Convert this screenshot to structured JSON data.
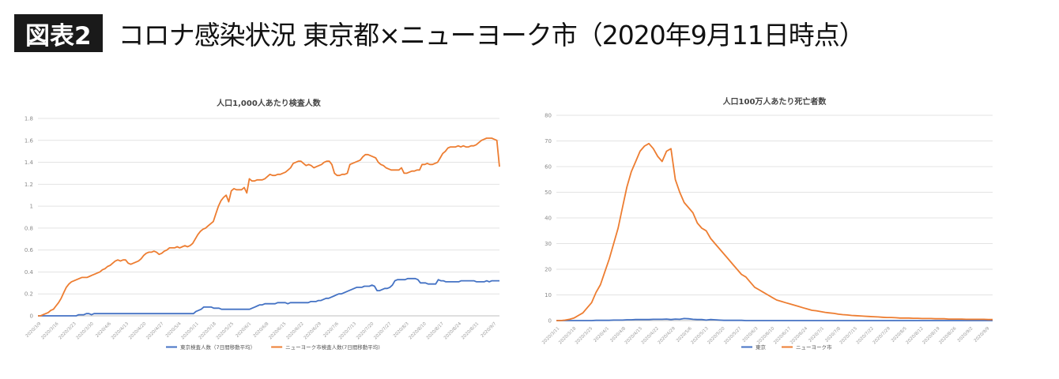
{
  "header": {
    "badge": "図表2",
    "title": "コロナ感染状況 東京都×ニューヨーク市（2020年9月11日時点）"
  },
  "colors": {
    "tokyo": "#4472C4",
    "nyc": "#ED7D31",
    "grid": "#e3e3e3",
    "axis_text": "#8a8a8a"
  },
  "chart_data": [
    {
      "type": "line",
      "title": "人口1,000人あたり検査人数",
      "xlabel": "",
      "ylabel": "",
      "ylim": [
        0,
        1.8
      ],
      "yticks": [
        "0",
        "0.2",
        "0.4",
        "0.6",
        "0.8",
        "1",
        "1.2",
        "1.4",
        "1.6",
        "1.8"
      ],
      "x_ticklabels": [
        "2020/3/9",
        "2020/3/16",
        "2020/3/23",
        "2020/3/30",
        "2020/4/6",
        "2020/4/13",
        "2020/4/20",
        "2020/4/27",
        "2020/5/4",
        "2020/5/11",
        "2020/5/18",
        "2020/5/25",
        "2020/6/1",
        "2020/6/8",
        "2020/6/15",
        "2020/6/22",
        "2020/6/29",
        "2020/7/6",
        "2020/7/13",
        "2020/7/20",
        "2020/7/27",
        "2020/8/3",
        "2020/8/10",
        "2020/8/17",
        "2020/8/24",
        "2020/8/31",
        "2020/9/7"
      ],
      "legend_position": "bottom",
      "grid": true,
      "series": [
        {
          "name": "東京検査人数（7日間移動平均）",
          "color": "#4472C4",
          "values": [
            0,
            0,
            0,
            0,
            0,
            0,
            0,
            0,
            0,
            0,
            0,
            0,
            0,
            0,
            0,
            0,
            0.01,
            0.01,
            0.01,
            0.02,
            0.02,
            0.01,
            0.02,
            0.02,
            0.02,
            0.02,
            0.02,
            0.02,
            0.02,
            0.02,
            0.02,
            0.02,
            0.02,
            0.02,
            0.02,
            0.02,
            0.02,
            0.02,
            0.02,
            0.02,
            0.02,
            0.02,
            0.02,
            0.02,
            0.02,
            0.02,
            0.02,
            0.02,
            0.02,
            0.02,
            0.02,
            0.02,
            0.02,
            0.02,
            0.02,
            0.02,
            0.02,
            0.02,
            0.02,
            0.02,
            0.02,
            0.02,
            0.04,
            0.05,
            0.06,
            0.08,
            0.08,
            0.08,
            0.08,
            0.07,
            0.07,
            0.07,
            0.06,
            0.06,
            0.06,
            0.06,
            0.06,
            0.06,
            0.06,
            0.06,
            0.06,
            0.06,
            0.06,
            0.06,
            0.07,
            0.08,
            0.09,
            0.1,
            0.1,
            0.11,
            0.11,
            0.11,
            0.11,
            0.11,
            0.12,
            0.12,
            0.12,
            0.12,
            0.11,
            0.12,
            0.12,
            0.12,
            0.12,
            0.12,
            0.12,
            0.12,
            0.12,
            0.13,
            0.13,
            0.13,
            0.14,
            0.14,
            0.15,
            0.16,
            0.16,
            0.17,
            0.18,
            0.19,
            0.2,
            0.2,
            0.21,
            0.22,
            0.23,
            0.24,
            0.25,
            0.26,
            0.26,
            0.26,
            0.27,
            0.27,
            0.27,
            0.28,
            0.27,
            0.23,
            0.23,
            0.24,
            0.25,
            0.25,
            0.26,
            0.28,
            0.32,
            0.33,
            0.33,
            0.33,
            0.33,
            0.34,
            0.34,
            0.34,
            0.34,
            0.33,
            0.3,
            0.3,
            0.3,
            0.29,
            0.29,
            0.29,
            0.29,
            0.33,
            0.32,
            0.32,
            0.31,
            0.31,
            0.31,
            0.31,
            0.31,
            0.31,
            0.32,
            0.32,
            0.32,
            0.32,
            0.32,
            0.32,
            0.31,
            0.31,
            0.31,
            0.31,
            0.32,
            0.31,
            0.32,
            0.32,
            0.32,
            0.32
          ]
        },
        {
          "name": "ニューヨーク市検査人数(7日間移動平均)",
          "color": "#ED7D31",
          "values": [
            0,
            0,
            0.01,
            0.02,
            0.03,
            0.05,
            0.06,
            0.09,
            0.12,
            0.16,
            0.21,
            0.26,
            0.29,
            0.31,
            0.32,
            0.33,
            0.34,
            0.35,
            0.35,
            0.35,
            0.36,
            0.37,
            0.38,
            0.39,
            0.4,
            0.42,
            0.43,
            0.45,
            0.46,
            0.48,
            0.5,
            0.51,
            0.5,
            0.51,
            0.51,
            0.48,
            0.47,
            0.48,
            0.49,
            0.5,
            0.52,
            0.55,
            0.57,
            0.58,
            0.58,
            0.59,
            0.58,
            0.56,
            0.57,
            0.59,
            0.6,
            0.62,
            0.62,
            0.62,
            0.63,
            0.62,
            0.63,
            0.64,
            0.63,
            0.64,
            0.66,
            0.7,
            0.74,
            0.77,
            0.79,
            0.8,
            0.82,
            0.84,
            0.86,
            0.93,
            1.0,
            1.05,
            1.08,
            1.1,
            1.04,
            1.14,
            1.16,
            1.15,
            1.15,
            1.15,
            1.17,
            1.12,
            1.25,
            1.23,
            1.23,
            1.24,
            1.24,
            1.24,
            1.25,
            1.27,
            1.29,
            1.28,
            1.28,
            1.29,
            1.29,
            1.3,
            1.31,
            1.33,
            1.35,
            1.39,
            1.4,
            1.41,
            1.41,
            1.39,
            1.37,
            1.38,
            1.37,
            1.35,
            1.36,
            1.37,
            1.38,
            1.4,
            1.41,
            1.41,
            1.38,
            1.3,
            1.28,
            1.28,
            1.29,
            1.29,
            1.3,
            1.38,
            1.39,
            1.4,
            1.41,
            1.42,
            1.45,
            1.47,
            1.47,
            1.46,
            1.45,
            1.44,
            1.4,
            1.38,
            1.37,
            1.35,
            1.34,
            1.33,
            1.33,
            1.33,
            1.33,
            1.35,
            1.3,
            1.3,
            1.31,
            1.32,
            1.32,
            1.33,
            1.33,
            1.38,
            1.38,
            1.39,
            1.38,
            1.38,
            1.39,
            1.4,
            1.44,
            1.48,
            1.5,
            1.53,
            1.54,
            1.54,
            1.54,
            1.55,
            1.54,
            1.55,
            1.54,
            1.54,
            1.55,
            1.55,
            1.56,
            1.58,
            1.6,
            1.61,
            1.62,
            1.62,
            1.62,
            1.61,
            1.6,
            1.36
          ]
        }
      ]
    },
    {
      "type": "line",
      "title": "人口100万人あたり死亡者数",
      "xlabel": "",
      "ylabel": "",
      "ylim": [
        0,
        80
      ],
      "yticks": [
        "0",
        "10",
        "20",
        "30",
        "40",
        "50",
        "60",
        "70",
        "80"
      ],
      "x_ticklabels": [
        "2020/3/11",
        "2020/3/18",
        "2020/3/25",
        "2020/4/1",
        "2020/4/8",
        "2020/4/15",
        "2020/4/22",
        "2020/4/29",
        "2020/5/6",
        "2020/5/13",
        "2020/5/20",
        "2020/5/27",
        "2020/6/3",
        "2020/6/10",
        "2020/6/17",
        "2020/6/24",
        "2020/7/1",
        "2020/7/8",
        "2020/7/15",
        "2020/7/22",
        "2020/7/29",
        "2020/8/5",
        "2020/8/12",
        "2020/8/19",
        "2020/8/26",
        "2020/9/2",
        "2020/9/9"
      ],
      "legend_position": "bottom",
      "grid": true,
      "series": [
        {
          "name": "東京",
          "color": "#4472C4",
          "values": [
            0,
            0,
            0,
            0,
            0,
            0,
            0,
            0,
            0,
            0.1,
            0.1,
            0.1,
            0.1,
            0.2,
            0.2,
            0.2,
            0.3,
            0.3,
            0.4,
            0.4,
            0.4,
            0.4,
            0.5,
            0.5,
            0.5,
            0.6,
            0.4,
            0.6,
            0.5,
            0.8,
            0.7,
            0.5,
            0.4,
            0.4,
            0.2,
            0.4,
            0.3,
            0.2,
            0.1,
            0.1,
            0.1,
            0.1,
            0.1,
            0,
            0,
            0,
            0,
            0,
            0,
            0,
            0,
            0,
            0,
            0,
            0,
            0,
            0,
            0,
            0,
            0,
            0,
            0,
            0,
            0,
            0,
            0,
            0,
            0,
            0,
            0,
            0,
            0,
            0,
            0,
            0,
            0,
            0,
            0,
            0,
            0,
            0,
            0,
            0,
            0,
            0,
            0,
            0,
            0,
            0,
            0,
            0,
            0,
            0,
            0,
            0,
            0,
            0,
            0,
            0,
            0
          ]
        },
        {
          "name": "ニューヨーク市",
          "color": "#ED7D31",
          "values": [
            0,
            0,
            0.2,
            0.5,
            1,
            2,
            3,
            5,
            7,
            11,
            14,
            19,
            24,
            30,
            36,
            44,
            52,
            58,
            62,
            66,
            68,
            69,
            67,
            64,
            62,
            66,
            67,
            55,
            50,
            46,
            44,
            42,
            38,
            36,
            35,
            32,
            30,
            28,
            26,
            24,
            22,
            20,
            18,
            17,
            15,
            13,
            12,
            11,
            10,
            9,
            8,
            7.5,
            7,
            6.5,
            6,
            5.5,
            5,
            4.5,
            4,
            3.8,
            3.5,
            3.2,
            3,
            2.8,
            2.5,
            2.3,
            2.2,
            2,
            1.9,
            1.8,
            1.7,
            1.6,
            1.5,
            1.4,
            1.3,
            1.2,
            1.2,
            1.1,
            1,
            1,
            1,
            0.9,
            0.9,
            0.8,
            0.8,
            0.8,
            0.7,
            0.7,
            0.7,
            0.6,
            0.6,
            0.6,
            0.6,
            0.5,
            0.5,
            0.5,
            0.5,
            0.5,
            0.4,
            0.4
          ]
        }
      ]
    }
  ]
}
